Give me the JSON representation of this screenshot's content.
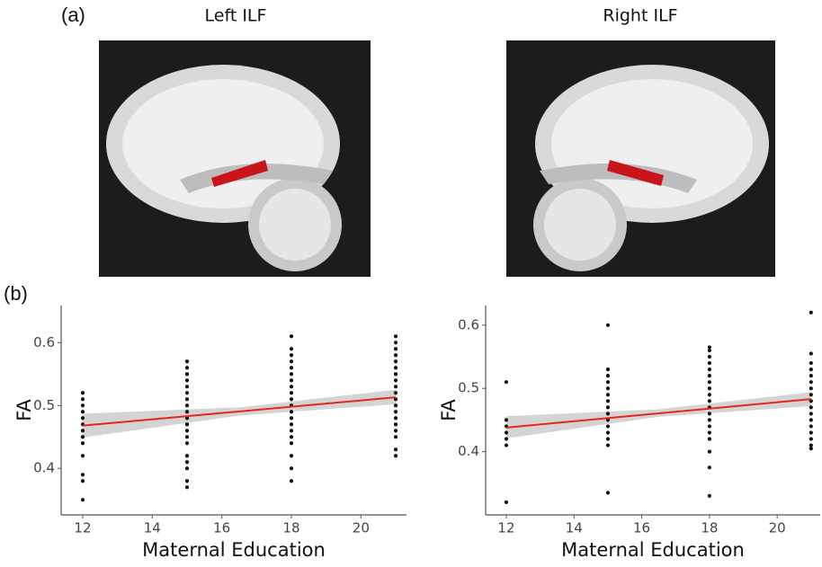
{
  "panels": {
    "a": "(a)",
    "b": "(b)"
  },
  "images": {
    "left_title": "Left ILF",
    "right_title": "Right ILF"
  },
  "chart_data": [
    {
      "type": "scatter",
      "xlabel": "Maternal Education",
      "ylabel": "FA",
      "color": "#111111",
      "xlim": [
        11.38,
        21.31
      ],
      "ylim": [
        0.326,
        0.659
      ],
      "xticks": [
        12,
        14,
        16,
        18,
        20
      ],
      "yticks": [
        0.4,
        0.5,
        0.6
      ],
      "x": [
        12,
        12,
        12,
        12,
        12,
        12,
        12,
        12,
        12,
        12,
        12,
        12,
        12,
        15,
        15,
        15,
        15,
        15,
        15,
        15,
        15,
        15,
        15,
        15,
        15,
        15,
        15,
        15,
        15,
        15,
        15,
        15,
        18,
        18,
        18,
        18,
        18,
        18,
        18,
        18,
        18,
        18,
        18,
        18,
        18,
        18,
        18,
        18,
        18,
        18,
        18,
        18,
        21,
        21,
        21,
        21,
        21,
        21,
        21,
        21,
        21,
        21,
        21,
        21,
        21,
        21,
        21,
        21,
        21,
        21,
        21
      ],
      "values": [
        0.35,
        0.38,
        0.39,
        0.42,
        0.44,
        0.45,
        0.46,
        0.47,
        0.48,
        0.49,
        0.5,
        0.51,
        0.52,
        0.37,
        0.38,
        0.4,
        0.41,
        0.42,
        0.44,
        0.45,
        0.46,
        0.47,
        0.48,
        0.49,
        0.5,
        0.51,
        0.52,
        0.53,
        0.54,
        0.55,
        0.56,
        0.57,
        0.38,
        0.4,
        0.42,
        0.44,
        0.45,
        0.46,
        0.47,
        0.48,
        0.49,
        0.5,
        0.51,
        0.52,
        0.53,
        0.54,
        0.55,
        0.56,
        0.57,
        0.58,
        0.59,
        0.61,
        0.42,
        0.43,
        0.45,
        0.46,
        0.47,
        0.48,
        0.49,
        0.5,
        0.51,
        0.52,
        0.53,
        0.54,
        0.55,
        0.56,
        0.57,
        0.58,
        0.59,
        0.6,
        0.61
      ],
      "fit": {
        "x": [
          12,
          21
        ],
        "values": [
          0.468,
          0.513
        ],
        "color": "#e8261e"
      },
      "band": {
        "x": [
          12,
          16.5,
          21
        ],
        "lower": [
          0.449,
          0.484,
          0.502
        ],
        "upper": [
          0.487,
          0.497,
          0.525
        ],
        "color": "#cccccc"
      }
    },
    {
      "type": "scatter",
      "xlabel": "Maternal Education",
      "ylabel": "FA",
      "color": "#111111",
      "xlim": [
        11.39,
        21.27
      ],
      "ylim": [
        0.3,
        0.631
      ],
      "xticks": [
        12,
        14,
        16,
        18,
        20
      ],
      "yticks": [
        0.4,
        0.5,
        0.6
      ],
      "x": [
        12,
        12,
        12,
        12,
        12,
        12,
        12,
        15,
        15,
        15,
        15,
        15,
        15,
        15,
        15,
        15,
        15,
        15,
        15,
        15,
        15,
        15,
        18,
        18,
        18,
        18,
        18,
        18,
        18,
        18,
        18,
        18,
        18,
        18,
        18,
        18,
        18,
        18,
        18,
        18,
        18,
        21,
        21,
        21,
        21,
        21,
        21,
        21,
        21,
        21,
        21,
        21,
        21,
        21,
        21,
        21,
        21,
        21
      ],
      "values": [
        0.32,
        0.41,
        0.42,
        0.43,
        0.44,
        0.45,
        0.51,
        0.335,
        0.41,
        0.42,
        0.43,
        0.44,
        0.45,
        0.46,
        0.47,
        0.48,
        0.49,
        0.5,
        0.51,
        0.52,
        0.53,
        0.6,
        0.33,
        0.375,
        0.4,
        0.42,
        0.43,
        0.44,
        0.45,
        0.46,
        0.47,
        0.48,
        0.49,
        0.5,
        0.51,
        0.52,
        0.53,
        0.54,
        0.55,
        0.56,
        0.565,
        0.405,
        0.41,
        0.42,
        0.43,
        0.44,
        0.45,
        0.46,
        0.47,
        0.48,
        0.49,
        0.5,
        0.51,
        0.52,
        0.53,
        0.54,
        0.555,
        0.62
      ],
      "fit": {
        "x": [
          12,
          21
        ],
        "values": [
          0.438,
          0.483
        ],
        "color": "#e8261e"
      },
      "band": {
        "x": [
          12,
          16.5,
          21
        ],
        "lower": [
          0.421,
          0.455,
          0.472
        ],
        "upper": [
          0.456,
          0.467,
          0.494
        ],
        "color": "#cccccc"
      }
    }
  ]
}
